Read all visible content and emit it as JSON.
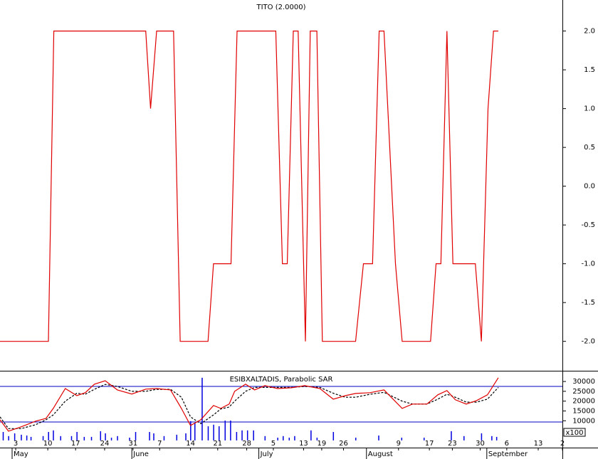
{
  "chart_data": [
    {
      "type": "line",
      "title": "TITO (2.0000)",
      "xlim": [
        0,
        93
      ],
      "ylim": [
        -2.37,
        2.4
      ],
      "yticks": [
        {
          "value": 2,
          "label": "2.0"
        },
        {
          "value": 1.5,
          "label": "1.5"
        },
        {
          "value": 1,
          "label": "1.0"
        },
        {
          "value": 0.5,
          "label": "0.5"
        },
        {
          "value": 0,
          "label": "0.0"
        },
        {
          "value": -0.5,
          "label": "-0.5"
        },
        {
          "value": -1,
          "label": "-1.0"
        },
        {
          "value": -1.5,
          "label": "-1.5"
        },
        {
          "value": -2,
          "label": "-2.0"
        }
      ],
      "series": [
        {
          "color": "#e00000",
          "x": [
            0,
            8,
            8.9,
            24.1,
            24.9,
            25.9,
            28.7,
            29.8,
            34.4,
            35.3,
            38.2,
            39.2,
            45.6,
            46.7,
            47.5,
            48.5,
            49.3,
            50.5,
            51.3,
            52.4,
            53.3,
            58.8,
            60.1,
            61.6,
            62.7,
            63.5,
            65.4,
            66.5,
            71.2,
            72.1,
            72.9,
            73.9,
            74.9,
            78.6,
            79.6,
            80.7,
            81.6,
            82.4
          ],
          "values": [
            -2,
            -2,
            2,
            2,
            1,
            2,
            2,
            -2,
            -2,
            -1,
            -1,
            2,
            2,
            -1,
            -1,
            2,
            2,
            -2,
            2,
            2,
            -2,
            -2,
            -1,
            -1,
            2,
            2,
            -1,
            -2,
            -2,
            -1,
            -1,
            2,
            -1,
            -1,
            -2,
            1,
            2,
            2
          ]
        }
      ]
    },
    {
      "type": "line",
      "title": "ESIBXALTADIS, Parabolic SAR",
      "xlim": [
        0,
        93
      ],
      "ylim": [
        -3300,
        35100
      ],
      "yticks": [
        30000,
        25000,
        20000,
        15000,
        10000
      ],
      "y_unit": "x100",
      "hlines": [
        27500,
        9400
      ],
      "hline_color": "#0000c0",
      "xticks": [
        {
          "value": 2.6,
          "label": "3"
        },
        {
          "value": 7.9,
          "label": "10"
        },
        {
          "value": 12.5,
          "label": "17"
        },
        {
          "value": 17.3,
          "label": "24"
        },
        {
          "value": 22,
          "label": "31"
        },
        {
          "value": 26.4,
          "label": "7"
        },
        {
          "value": 31.5,
          "label": "14"
        },
        {
          "value": 36,
          "label": "21"
        },
        {
          "value": 40.8,
          "label": "28"
        },
        {
          "value": 45.2,
          "label": "5"
        },
        {
          "value": 50.2,
          "label": "13"
        },
        {
          "value": 53.2,
          "label": "19"
        },
        {
          "value": 56.8,
          "label": "26"
        },
        {
          "value": 65.9,
          "label": "9"
        },
        {
          "value": 71,
          "label": "17"
        },
        {
          "value": 74.8,
          "label": "23"
        },
        {
          "value": 79.4,
          "label": "30"
        },
        {
          "value": 83.8,
          "label": "6"
        },
        {
          "value": 89,
          "label": "13"
        },
        {
          "value": 93,
          "label": "2"
        }
      ],
      "xmonths": [
        {
          "value": 2,
          "label": "May"
        },
        {
          "value": 21.8,
          "label": "June"
        },
        {
          "value": 42.8,
          "label": "July"
        },
        {
          "value": 60.6,
          "label": "August"
        },
        {
          "value": 80.5,
          "label": "September"
        }
      ],
      "series": [
        {
          "style": "bar",
          "color": "#0000e0",
          "x": [
            0.5,
            1.4,
            2.4,
            3.5,
            4.4,
            5.1,
            7.1,
            8,
            8.8,
            10,
            11.8,
            12.7,
            13.9,
            15.1,
            16.6,
            17.4,
            18.4,
            19.4,
            21.4,
            22.4,
            24.7,
            25.4,
            27.1,
            29.2,
            30.7,
            31.5,
            32.2,
            33.4,
            34.4,
            35.3,
            36.2,
            37.2,
            38.1,
            39.1,
            40,
            40.9,
            41.9,
            43.8,
            45.9,
            46.8,
            47.8,
            48.7,
            51.4,
            52.4,
            55.1,
            58.8,
            62.6,
            66.4,
            70.1,
            74.6,
            76.7,
            79.6,
            81.3,
            82.1
          ],
          "values": [
            4300,
            2200,
            3600,
            2900,
            2500,
            1800,
            2200,
            4300,
            5100,
            2200,
            2200,
            4300,
            1800,
            1800,
            4700,
            3600,
            1400,
            2200,
            1400,
            4300,
            4300,
            3600,
            2200,
            2900,
            3600,
            9800,
            8700,
            31900,
            7200,
            8000,
            7200,
            10100,
            10100,
            4300,
            5100,
            5100,
            5100,
            2200,
            1400,
            2200,
            1400,
            2200,
            5100,
            1400,
            4300,
            1400,
            2500,
            1400,
            1400,
            4700,
            2200,
            3600,
            2200,
            1800
          ]
        },
        {
          "style": "dashed",
          "color": "#000000",
          "x": [
            0,
            1.4,
            3.5,
            5.9,
            7.6,
            8.8,
            10.8,
            12.7,
            14.1,
            15.6,
            17.4,
            19.4,
            21.8,
            24.1,
            25.9,
            28.2,
            30,
            31.5,
            33.2,
            35.3,
            36.5,
            37.9,
            38.8,
            40.6,
            42.1,
            43.8,
            45.9,
            48.2,
            50.4,
            52.9,
            55.1,
            57.1,
            58.8,
            61.2,
            63.5,
            66.5,
            68.2,
            70.6,
            72.4,
            73.9,
            75.3,
            77.1,
            78.8,
            80.6,
            82.4
          ],
          "values": [
            12000,
            6000,
            6000,
            8000,
            10500,
            13000,
            20000,
            24000,
            23500,
            26000,
            28500,
            27500,
            25000,
            25000,
            26000,
            26000,
            22000,
            12000,
            8500,
            13000,
            16000,
            17000,
            20000,
            25000,
            27000,
            27000,
            27000,
            27000,
            27500,
            27000,
            24000,
            22000,
            22000,
            23500,
            24500,
            20000,
            18500,
            18500,
            21000,
            23500,
            22000,
            19500,
            19500,
            21000,
            27000
          ]
        },
        {
          "style": "solid",
          "color": "#e00000",
          "x": [
            0,
            1.4,
            3.5,
            5.9,
            7.6,
            8.8,
            10.8,
            12.7,
            14.1,
            15.6,
            17.4,
            19.4,
            21.8,
            24.1,
            25.9,
            28.2,
            30,
            31.5,
            33.2,
            35.3,
            36.5,
            37.9,
            38.8,
            40.6,
            42.1,
            43.8,
            45.9,
            48.2,
            50.4,
            52.9,
            55.1,
            57.1,
            58.8,
            61.2,
            63.5,
            66.5,
            68.2,
            70.6,
            72.4,
            73.9,
            75.3,
            77.1,
            78.8,
            80.6,
            82.4
          ],
          "values": [
            10500,
            4700,
            6900,
            9800,
            11200,
            16300,
            26400,
            22800,
            24300,
            28600,
            30400,
            25700,
            23600,
            26100,
            26400,
            25700,
            16300,
            7600,
            10500,
            17800,
            16300,
            18500,
            25000,
            28600,
            25700,
            27900,
            26400,
            26800,
            27900,
            26400,
            21000,
            22800,
            23900,
            24300,
            25700,
            16300,
            18500,
            18500,
            23200,
            25400,
            20700,
            18500,
            20300,
            23200,
            31900
          ]
        }
      ]
    }
  ]
}
